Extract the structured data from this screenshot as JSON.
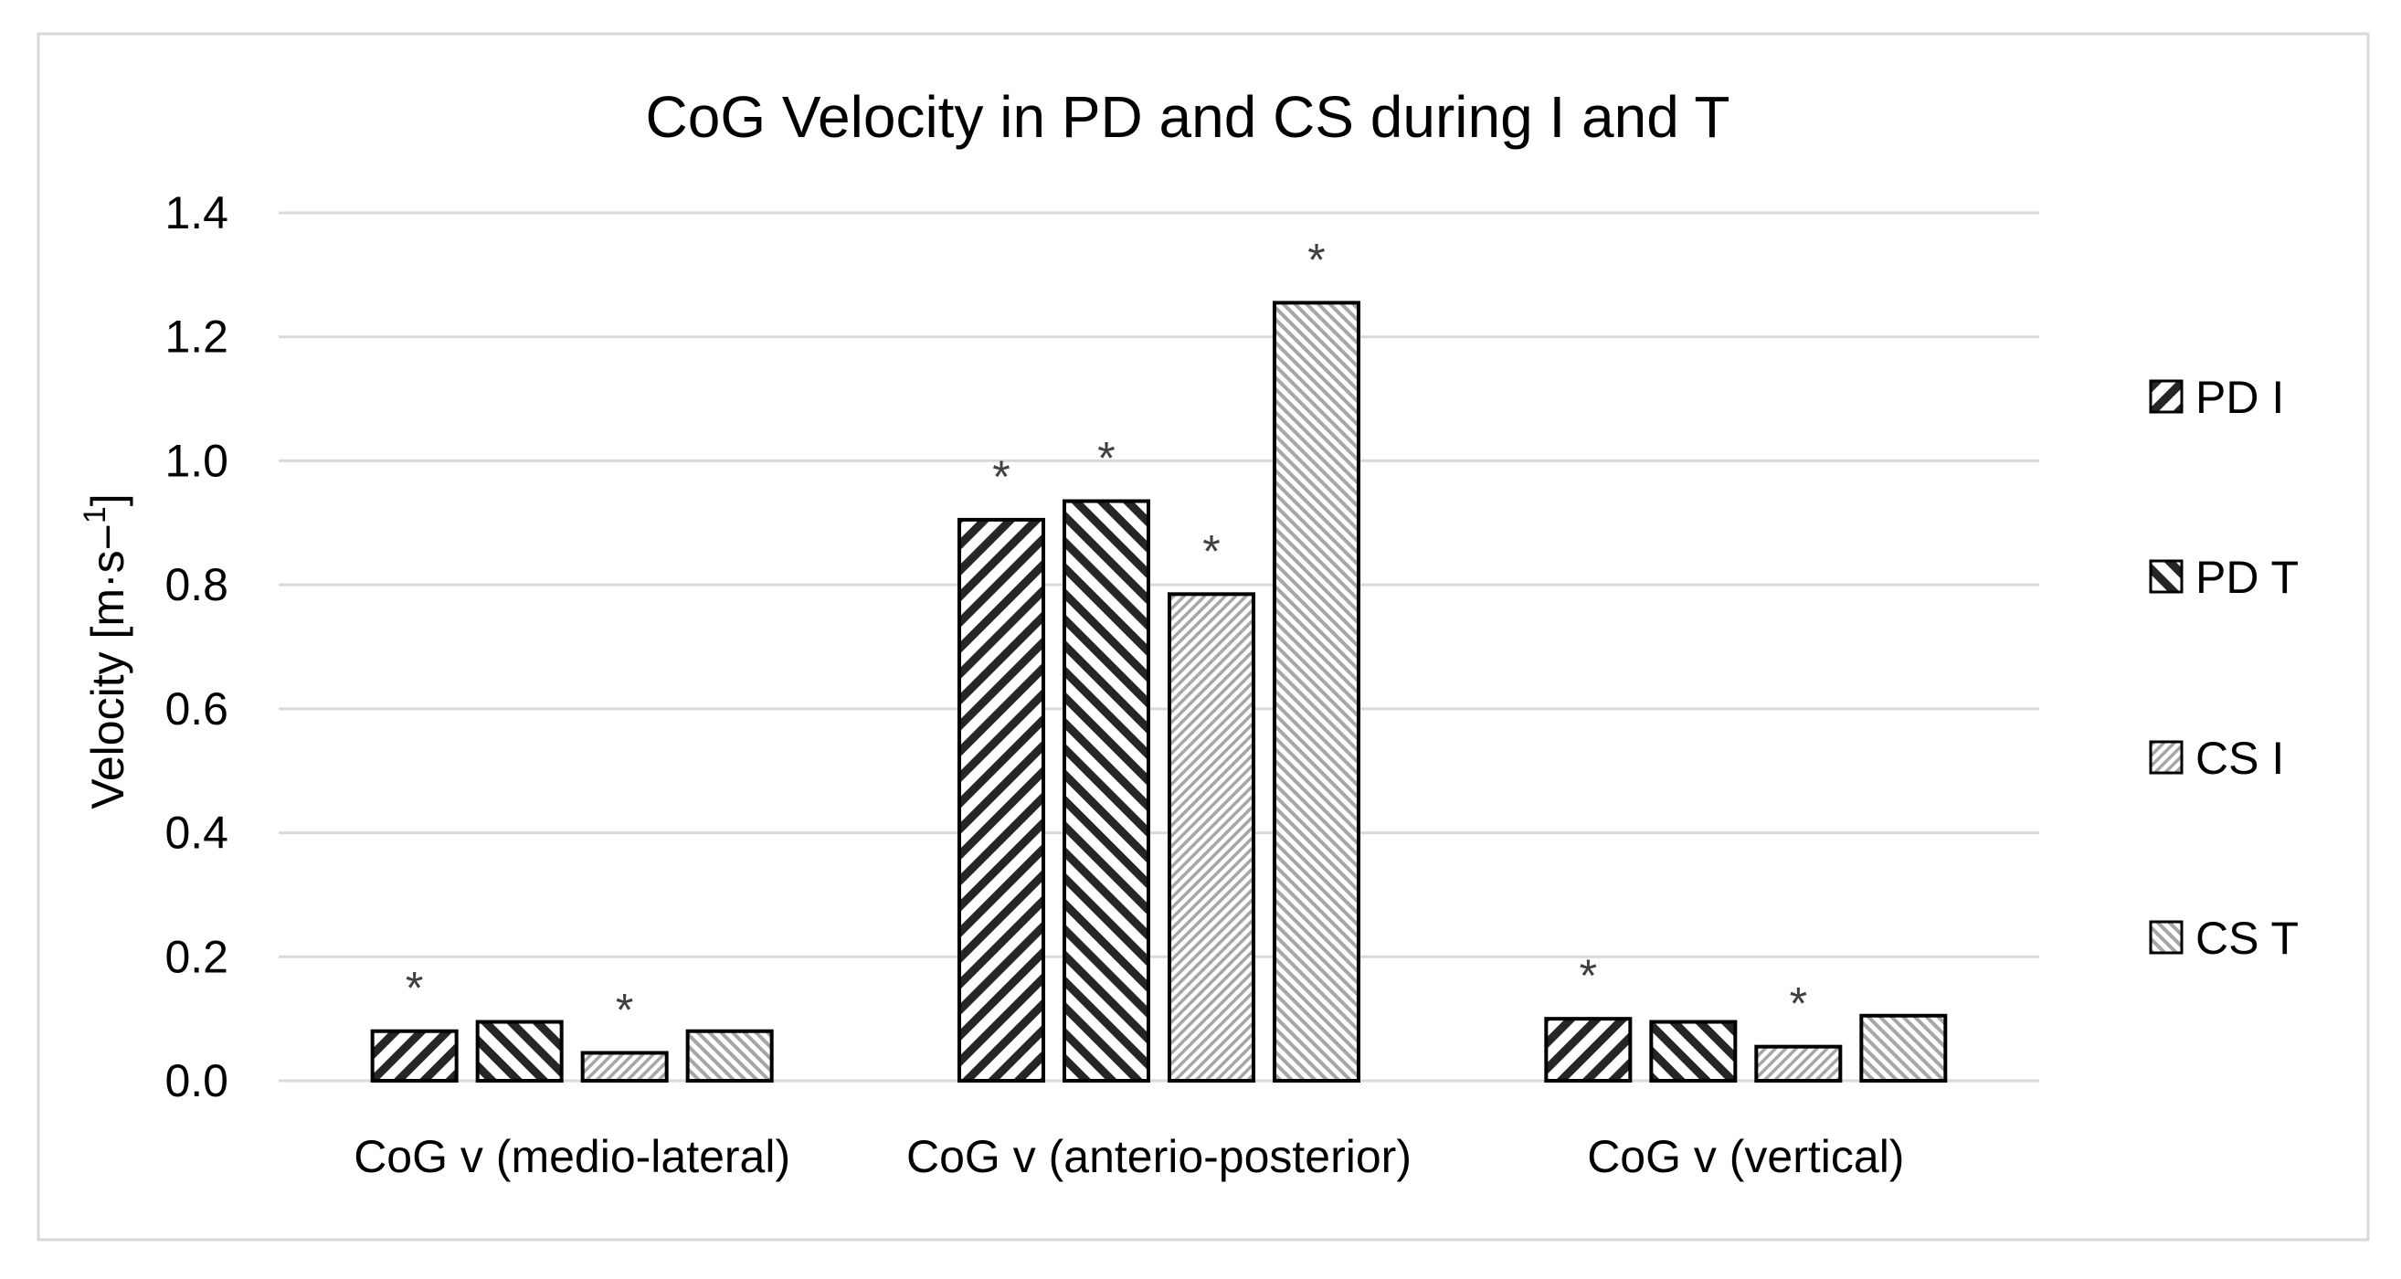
{
  "chart_data": {
    "type": "bar",
    "title": "CoG Velocity in PD and CS during I and T",
    "xlabel": "",
    "ylabel": "Velocity [m·s−",
    "ylabel_sup": "1",
    "ylabel_end": "]",
    "ylim": [
      0,
      1.4
    ],
    "yticks": [
      "0.0",
      "0.2",
      "0.4",
      "0.6",
      "0.8",
      "1.0",
      "1.2",
      "1.4"
    ],
    "ytick_values": [
      0,
      0.2,
      0.4,
      0.6,
      0.8,
      1.0,
      1.2,
      1.4
    ],
    "grid": true,
    "legend_position": "right",
    "categories": [
      "CoG v (medio-lateral)",
      "CoG v (anterio-posterior)",
      "CoG v (vertical)"
    ],
    "significance_marker": "*",
    "series": [
      {
        "name": "PD I",
        "values": [
          0.08,
          0.905,
          0.1
        ],
        "significant": [
          true,
          true,
          true
        ],
        "pattern": "wide-downward-diagonal",
        "color": "#262626"
      },
      {
        "name": "PD T",
        "values": [
          0.095,
          0.935,
          0.095
        ],
        "significant": [
          false,
          true,
          false
        ],
        "pattern": "wide-upward-diagonal",
        "color": "#262626"
      },
      {
        "name": "CS I",
        "values": [
          0.045,
          0.785,
          0.055
        ],
        "significant": [
          true,
          true,
          true
        ],
        "pattern": "light-downward-diagonal",
        "color": "#a6a6a6"
      },
      {
        "name": "CS T",
        "values": [
          0.08,
          1.255,
          0.105
        ],
        "significant": [
          false,
          true,
          false
        ],
        "pattern": "light-upward-diagonal",
        "color": "#a6a6a6"
      }
    ]
  },
  "colors": {
    "background": "#ffffff",
    "frame": "#d9d9d9",
    "grid": "#d9d9d9",
    "bar_outline": "#000000",
    "text": "#000000",
    "marker": "#404040"
  }
}
